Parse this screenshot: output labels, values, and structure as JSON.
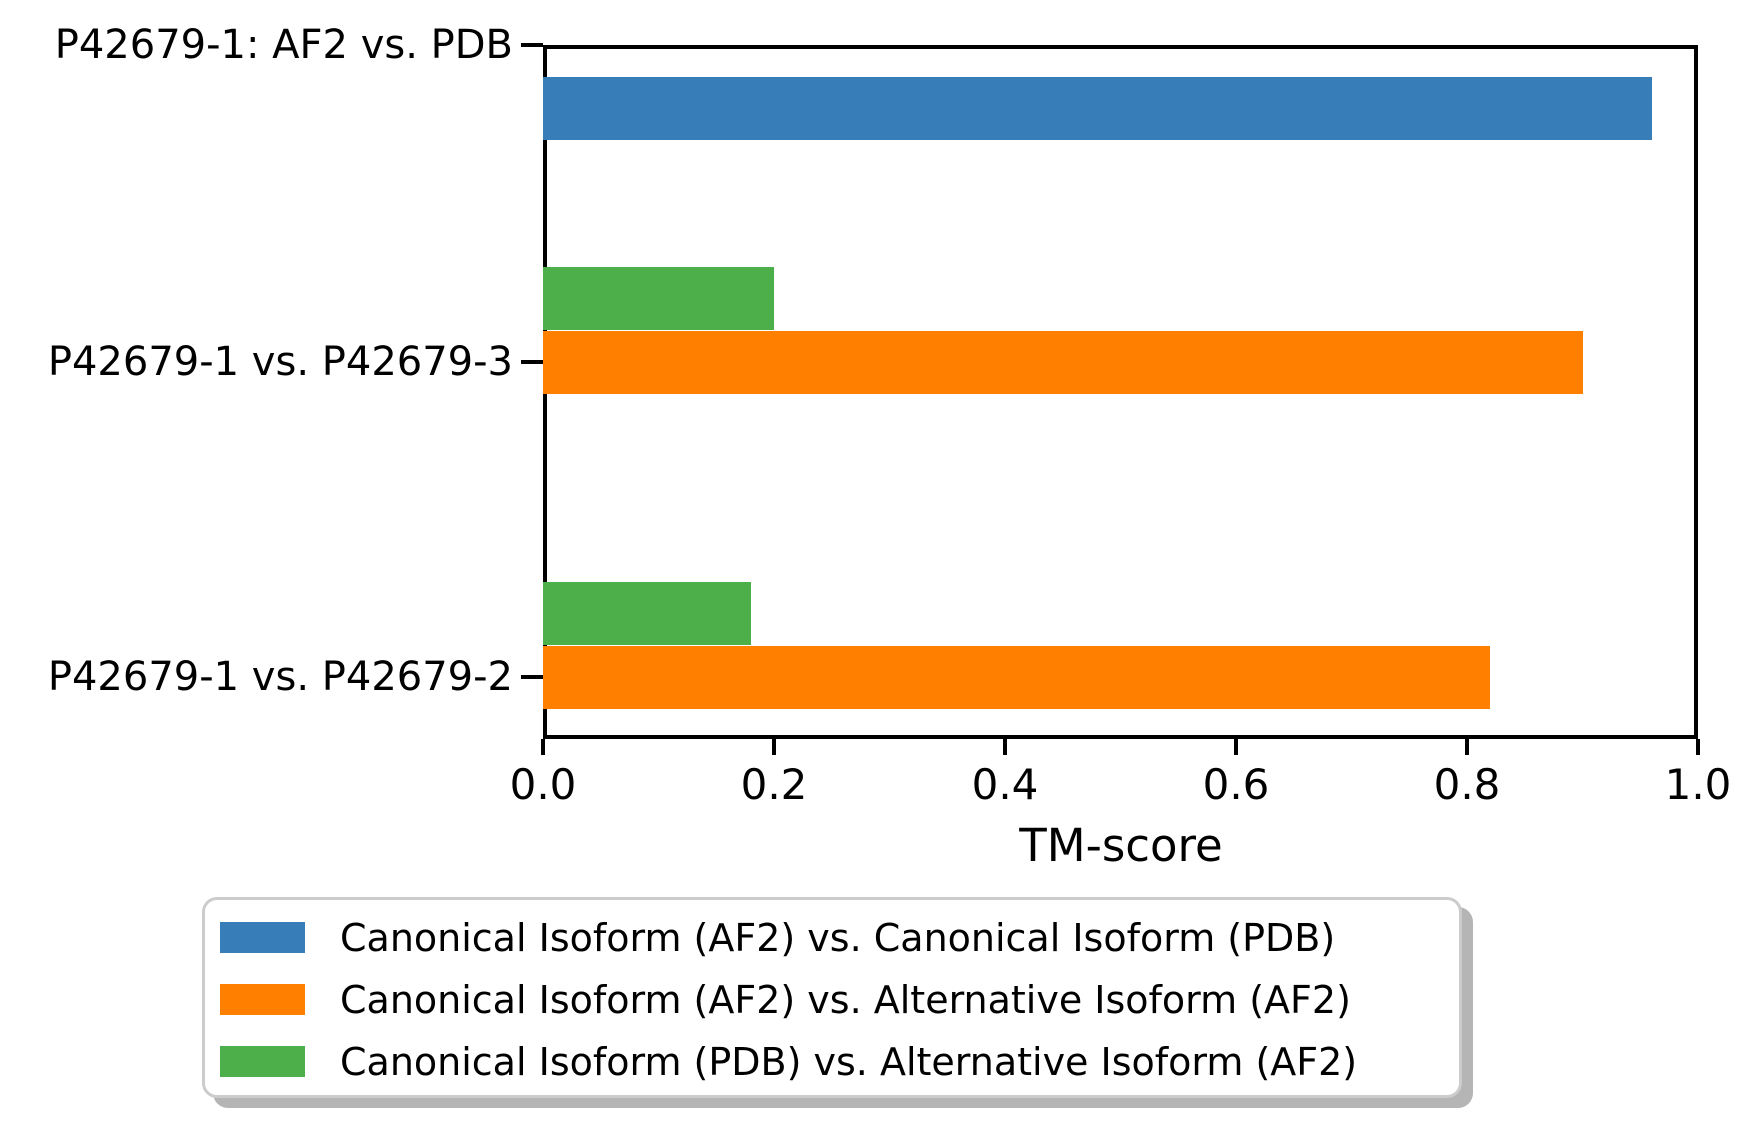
{
  "chart_data": {
    "type": "bar",
    "orientation": "horizontal",
    "title": "",
    "xlabel": "TM-score",
    "ylabel": "",
    "xlim": [
      0.0,
      1.0
    ],
    "grid": false,
    "x_ticks": [
      "0.0",
      "0.2",
      "0.4",
      "0.6",
      "0.8",
      "1.0"
    ],
    "x_tick_values": [
      0.0,
      0.2,
      0.4,
      0.6,
      0.8,
      1.0
    ],
    "categories": [
      "P42679-1: AF2 vs. PDB",
      "P42679-1 vs. P42679-3",
      "P42679-1 vs. P42679-2"
    ],
    "series": [
      {
        "name": "Canonical Isoform (AF2) vs. Canonical Isoform (PDB)",
        "color": "#377eb8",
        "slot": "below",
        "values": [
          0.96,
          null,
          null
        ]
      },
      {
        "name": "Canonical Isoform (AF2) vs. Alternative Isoform (AF2)",
        "color": "#ff7f00",
        "slot": "center",
        "values": [
          null,
          0.9,
          0.82
        ]
      },
      {
        "name": "Canonical Isoform (PDB) vs. Alternative Isoform (AF2)",
        "color": "#4daf4a",
        "slot": "above",
        "values": [
          null,
          0.2,
          0.18
        ]
      }
    ],
    "legend": {
      "position": "below-chart",
      "border_color": "#cccccc",
      "shadow_color": "#b5b5b5"
    }
  }
}
